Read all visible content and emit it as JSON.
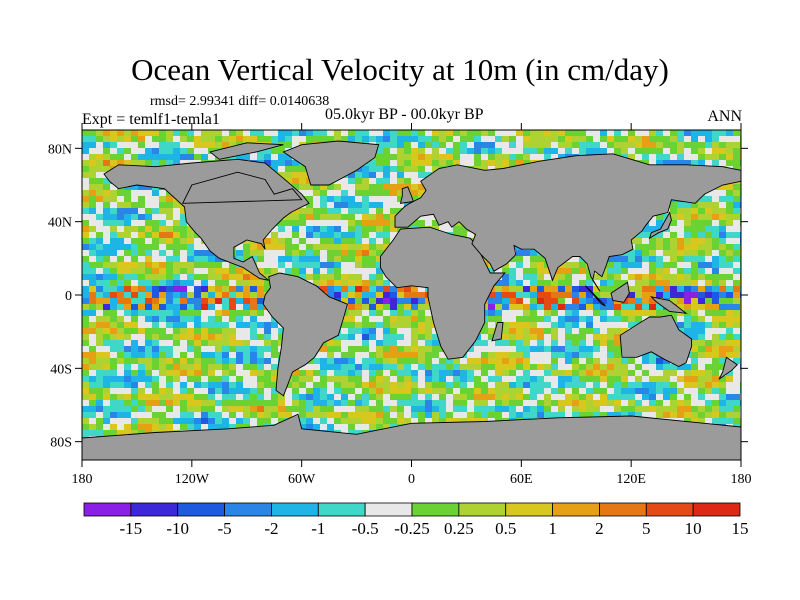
{
  "header": {
    "title": "Ocean Vertical Velocity at 10m (in cm/day)",
    "stats": "rmsd= 2.99341 diff= 0.0140638",
    "experiment": "Expt = temlf1-temla1",
    "period": "05.0kyr BP - 00.0kyr BP",
    "season": "ANN"
  },
  "chart_data": {
    "type": "heatmap",
    "title": "Ocean Vertical Velocity at 10m (in cm/day)",
    "xlabel": "",
    "ylabel": "",
    "xlim": [
      -180,
      180
    ],
    "ylim": [
      -90,
      90
    ],
    "x_ticks": [
      {
        "value": -180,
        "label": "180"
      },
      {
        "value": -120,
        "label": "120W"
      },
      {
        "value": -60,
        "label": "60W"
      },
      {
        "value": 0,
        "label": "0"
      },
      {
        "value": 60,
        "label": "60E"
      },
      {
        "value": 120,
        "label": "120E"
      },
      {
        "value": 180,
        "label": "180"
      }
    ],
    "y_ticks": [
      {
        "value": 80,
        "label": "80N"
      },
      {
        "value": 40,
        "label": "40N"
      },
      {
        "value": 0,
        "label": "0"
      },
      {
        "value": -40,
        "label": "40S"
      },
      {
        "value": -80,
        "label": "80S"
      }
    ],
    "land_color": "#9b9b9b",
    "colorbar": {
      "colors": [
        "#8a1fe6",
        "#3c28d8",
        "#1e5adf",
        "#2a86e6",
        "#1eb4e6",
        "#3fd8c8",
        "#e8e8e8",
        "#6ad232",
        "#aed232",
        "#d8c81e",
        "#e6a014",
        "#e67814",
        "#e64a14",
        "#dc2814"
      ],
      "labels": [
        "-15",
        "-10",
        "-5",
        "-2",
        "-1",
        "-0.5",
        "-0.25",
        "0.25",
        "0.5",
        "1",
        "2",
        "5",
        "10",
        "15"
      ]
    }
  }
}
